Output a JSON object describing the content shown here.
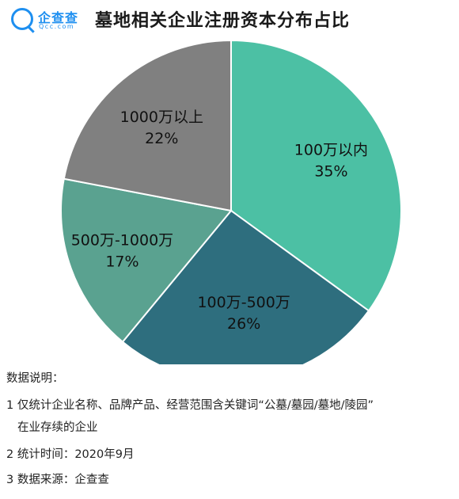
{
  "header": {
    "logo_name": "企查查",
    "logo_domain": "Qcc.com",
    "title": "墓地相关企业注册资本分布占比"
  },
  "chart_data": {
    "type": "pie",
    "title": "墓地相关企业注册资本分布占比",
    "slices": [
      {
        "label": "100万以内",
        "value": 35,
        "value_label": "35%",
        "color": "#4cc0a4"
      },
      {
        "label": "100万-500万",
        "value": 26,
        "value_label": "26%",
        "color": "#2e6e7e"
      },
      {
        "label": "500万-1000万",
        "value": 17,
        "value_label": "17%",
        "color": "#5aa290"
      },
      {
        "label": "1000万以上",
        "value": 22,
        "value_label": "22%",
        "color": "#808080"
      }
    ],
    "start_angle_deg": 0,
    "direction": "clockwise"
  },
  "notes": {
    "heading": "数据说明：",
    "line1": "1 仅统计企业名称、品牌产品、经营范围含关键词“公墓/墓园/墓地/陵园”",
    "line1_cont": "在业存续的企业",
    "line2": "2 统计时间：2020年9月",
    "line3": "3 数据来源：企查查"
  }
}
